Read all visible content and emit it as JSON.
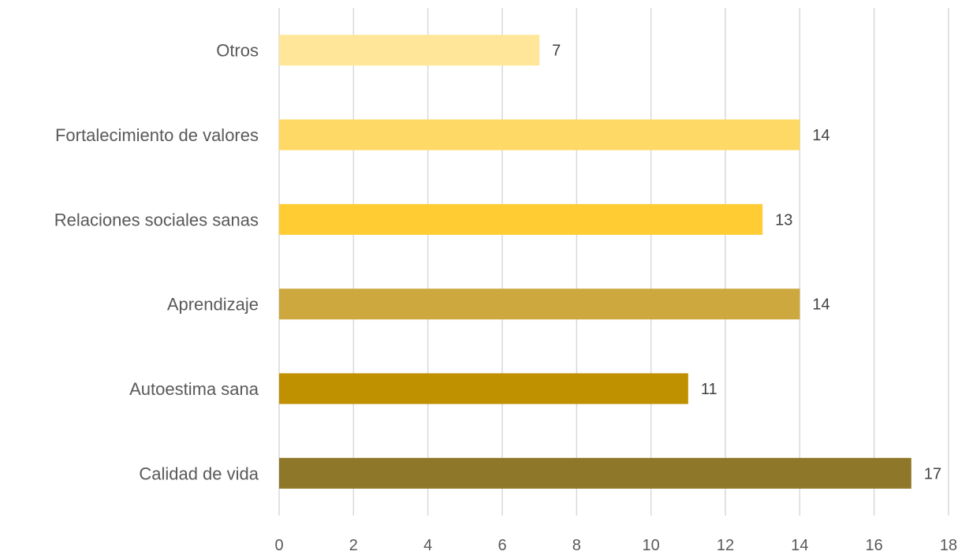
{
  "chart_data": {
    "type": "bar",
    "orientation": "horizontal",
    "title": "",
    "xlabel": "",
    "ylabel": "",
    "categories": [
      "Otros",
      "Fortalecimiento de valores",
      "Relaciones sociales sanas",
      "Aprendizaje",
      "Autoestima sana",
      "Calidad de vida"
    ],
    "values": [
      7,
      14,
      13,
      14,
      11,
      17
    ],
    "colors": [
      "#FFE699",
      "#FFD966",
      "#FFCC33",
      "#CCA83F",
      "#BF9000",
      "#8F772A"
    ],
    "xlim": [
      0,
      18
    ],
    "xticks": [
      "0",
      "2",
      "4",
      "6",
      "8",
      "10",
      "12",
      "14",
      "16",
      "18"
    ],
    "grid": "vertical",
    "data_labels": true,
    "legend": "none"
  }
}
